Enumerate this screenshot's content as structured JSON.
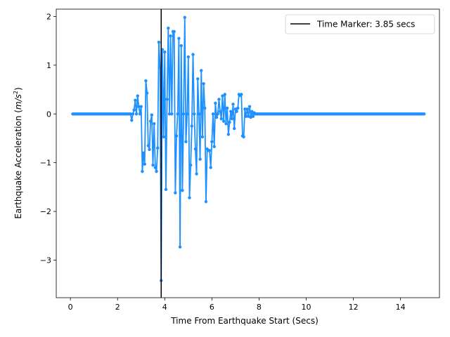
{
  "chart_data": {
    "type": "line",
    "title": "",
    "xlabel": "Time From Earthquake Start (Secs)",
    "ylabel_main": "Earthquake Acceleration (",
    "ylabel_unit": "m/s",
    "ylabel_exp": "2",
    "ylabel_close": ")",
    "xlim": [
      -0.6,
      15.65
    ],
    "ylim": [
      -3.77,
      2.15
    ],
    "xticks": [
      0,
      2,
      4,
      6,
      8,
      10,
      12,
      14
    ],
    "yticks": [
      -3,
      -2,
      -1,
      0,
      1,
      2
    ],
    "grid": false,
    "legend_position": "top-right",
    "marker_x": 3.85,
    "legend_label": "Time Marker: 3.85 secs",
    "series_color": "#1e90ff",
    "marker_color": "#000000",
    "x_start": 0.1,
    "x_step": 0.05,
    "seismic_points": [
      [
        2.55,
        0.0
      ],
      [
        2.6,
        -0.13
      ],
      [
        2.7,
        0.08
      ],
      [
        2.75,
        0.28
      ],
      [
        2.85,
        0.37
      ],
      [
        2.9,
        0.15
      ],
      [
        3.0,
        0.15
      ],
      [
        3.05,
        -1.18
      ],
      [
        3.1,
        -0.8
      ],
      [
        3.15,
        -1.03
      ],
      [
        3.2,
        0.68
      ],
      [
        3.25,
        0.43
      ],
      [
        3.3,
        -0.65
      ],
      [
        3.35,
        -0.73
      ],
      [
        3.4,
        -0.15
      ],
      [
        3.45,
        -0.02
      ],
      [
        3.5,
        -1.05
      ],
      [
        3.55,
        -0.2
      ],
      [
        3.6,
        -1.1
      ],
      [
        3.65,
        -1.18
      ],
      [
        3.7,
        -0.7
      ],
      [
        3.75,
        1.47
      ],
      [
        3.8,
        0.96
      ],
      [
        3.85,
        -3.42
      ],
      [
        3.9,
        1.32
      ],
      [
        3.95,
        -0.47
      ],
      [
        4.0,
        1.27
      ],
      [
        4.05,
        -1.55
      ],
      [
        4.1,
        0.3
      ],
      [
        4.15,
        1.76
      ],
      [
        4.25,
        1.6
      ],
      [
        4.35,
        1.69
      ],
      [
        4.4,
        1.69
      ],
      [
        4.45,
        -1.62
      ],
      [
        4.5,
        -0.45
      ],
      [
        4.6,
        1.55
      ],
      [
        4.65,
        -2.73
      ],
      [
        4.7,
        1.4
      ],
      [
        4.75,
        -1.57
      ],
      [
        4.85,
        1.98
      ],
      [
        4.9,
        -0.57
      ],
      [
        5.0,
        1.17
      ],
      [
        5.05,
        -1.72
      ],
      [
        5.1,
        -1.05
      ],
      [
        5.15,
        -0.25
      ],
      [
        5.2,
        1.22
      ],
      [
        5.3,
        -0.72
      ],
      [
        5.35,
        -1.23
      ],
      [
        5.4,
        0.72
      ],
      [
        5.5,
        -0.93
      ],
      [
        5.55,
        0.89
      ],
      [
        5.6,
        -0.47
      ],
      [
        5.65,
        0.62
      ],
      [
        5.7,
        0.12
      ],
      [
        5.75,
        -1.8
      ],
      [
        5.8,
        -0.72
      ],
      [
        5.85,
        -0.75
      ],
      [
        5.9,
        -0.75
      ],
      [
        5.95,
        -1.1
      ],
      [
        6.0,
        -0.57
      ],
      [
        6.1,
        -0.67
      ],
      [
        6.15,
        0.22
      ],
      [
        6.2,
        -0.07
      ],
      [
        6.3,
        0.3
      ],
      [
        6.35,
        0.05
      ],
      [
        6.4,
        -0.1
      ],
      [
        6.45,
        0.37
      ],
      [
        6.5,
        -0.15
      ],
      [
        6.55,
        0.4
      ],
      [
        6.6,
        -0.2
      ],
      [
        6.65,
        0.12
      ],
      [
        6.7,
        -0.42
      ],
      [
        6.75,
        -0.17
      ],
      [
        6.8,
        0.05
      ],
      [
        6.85,
        -0.1
      ],
      [
        6.9,
        0.2
      ],
      [
        6.95,
        -0.3
      ],
      [
        7.0,
        0.1
      ],
      [
        7.05,
        0.05
      ],
      [
        7.1,
        0.12
      ],
      [
        7.15,
        0.4
      ],
      [
        7.2,
        0.38
      ],
      [
        7.25,
        0.4
      ],
      [
        7.3,
        -0.45
      ],
      [
        7.35,
        -0.47
      ],
      [
        7.4,
        0.1
      ],
      [
        7.45,
        -0.05
      ],
      [
        7.5,
        0.1
      ],
      [
        7.55,
        -0.05
      ],
      [
        7.6,
        0.15
      ],
      [
        7.65,
        -0.07
      ],
      [
        7.7,
        0.05
      ],
      [
        7.75,
        -0.05
      ],
      [
        7.8,
        0.02
      ],
      [
        7.85,
        0.0
      ]
    ]
  }
}
